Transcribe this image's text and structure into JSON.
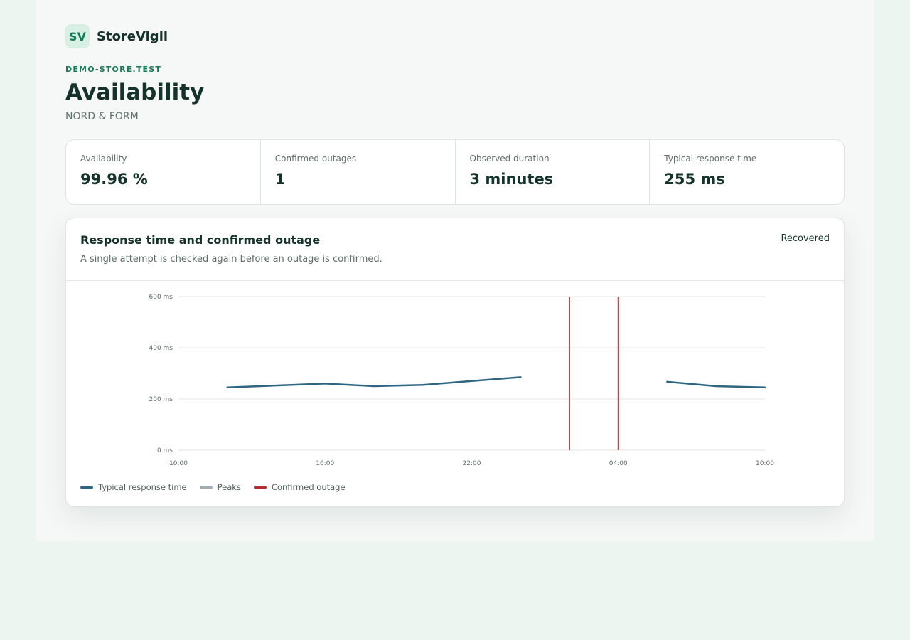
{
  "brand": {
    "badge": "SV",
    "name": "StoreVigil"
  },
  "header": {
    "domain": "DEMO-STORE.TEST",
    "title": "Availability",
    "subtitle": "NORD & FORM"
  },
  "stats": [
    {
      "label": "Availability",
      "value": "99.96 %"
    },
    {
      "label": "Confirmed outages",
      "value": "1"
    },
    {
      "label": "Observed duration",
      "value": "3 minutes"
    },
    {
      "label": "Typical response time",
      "value": "255 ms"
    }
  ],
  "card": {
    "title": "Response time and confirmed outage",
    "description": "A single attempt is checked again before an outage is confirmed.",
    "status": "Recovered"
  },
  "legend": [
    {
      "label": "Typical response time",
      "color": "#2e6583"
    },
    {
      "label": "Peaks",
      "color": "#9eadb6"
    },
    {
      "label": "Confirmed outage",
      "color": "#b32b2b"
    }
  ],
  "colors": {
    "accent": "#1b7a57",
    "line": "#2e6583",
    "outage": "#c9484a",
    "grid": "#e6eae8"
  },
  "chart_data": {
    "type": "line",
    "title": "Response time and confirmed outage",
    "xlabel": "",
    "ylabel": "",
    "x_ticks": [
      "10:00",
      "16:00",
      "22:00",
      "04:00",
      "10:00"
    ],
    "x_tick_hours": [
      0,
      6,
      12,
      18,
      24
    ],
    "y_ticks": [
      0,
      200,
      400,
      600
    ],
    "y_tick_labels": [
      "0 ms",
      "200 ms",
      "400 ms",
      "600 ms"
    ],
    "ylim": [
      0,
      600
    ],
    "series": [
      {
        "name": "Typical response time",
        "segments": [
          [
            {
              "h": 2,
              "v": 245
            },
            {
              "h": 6,
              "v": 260
            },
            {
              "h": 8,
              "v": 250
            },
            {
              "h": 10,
              "v": 255
            },
            {
              "h": 14,
              "v": 285
            }
          ],
          [
            {
              "h": 20,
              "v": 267
            },
            {
              "h": 22,
              "v": 250
            },
            {
              "h": 24,
              "v": 245
            }
          ]
        ]
      }
    ],
    "outage_markers": [
      16,
      18
    ],
    "grid": true,
    "legend_position": "bottom-left"
  }
}
